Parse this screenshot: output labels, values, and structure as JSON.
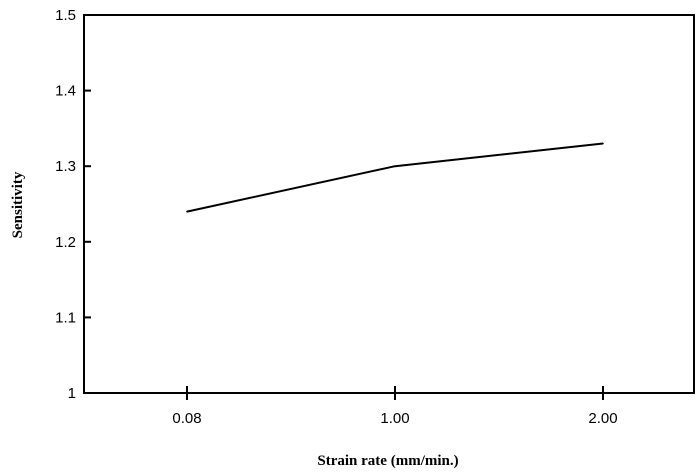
{
  "chart_data": {
    "type": "line",
    "title": "",
    "xlabel": "Strain rate (mm/min.)",
    "ylabel": "Sensitivity",
    "x_scale": "categorical",
    "categories": [
      "0.08",
      "1.00",
      "2.00"
    ],
    "series": [
      {
        "values": [
          1.24,
          1.3,
          1.33
        ]
      }
    ],
    "ylim": [
      1.0,
      1.5
    ],
    "yticks": [
      "1",
      "1.1",
      "1.2",
      "1.3",
      "1.4",
      "1.5"
    ],
    "grid": false,
    "legend": "none",
    "colors": {
      "line": "#000000",
      "axis": "#000000",
      "background": "#ffffff"
    }
  }
}
